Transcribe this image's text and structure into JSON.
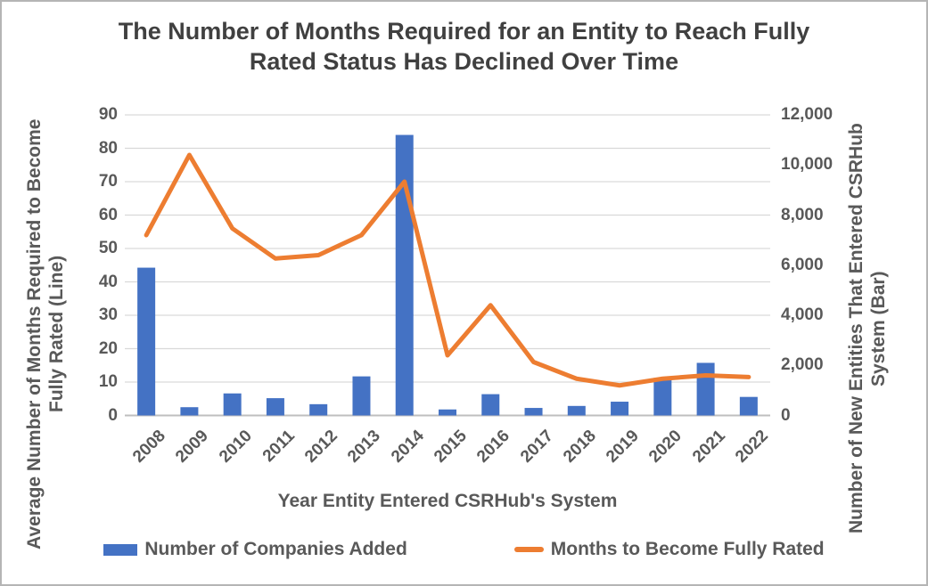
{
  "chart_data": {
    "type": "combo-bar-line",
    "title": "The Number of Months Required for an Entity to Reach Fully Rated Status Has Declined Over Time",
    "categories": [
      "2008",
      "2009",
      "2010",
      "2011",
      "2012",
      "2013",
      "2014",
      "2015",
      "2016",
      "2017",
      "2018",
      "2019",
      "2020",
      "2021",
      "2022"
    ],
    "series": [
      {
        "name": "Number of Companies Added",
        "type": "bar",
        "axis": "right",
        "color": "#4472C4",
        "values": [
          5900,
          330,
          880,
          690,
          450,
          1560,
          11200,
          240,
          850,
          300,
          380,
          550,
          1500,
          2100,
          740
        ]
      },
      {
        "name": "Months to Become Fully Rated",
        "type": "line",
        "axis": "left",
        "color": "#ED7D31",
        "values": [
          54,
          78,
          56,
          47,
          48,
          54,
          70,
          18,
          33,
          16,
          11,
          9,
          11,
          12,
          11.5
        ]
      }
    ],
    "x_axis": {
      "label": "Year Entity Entered CSRHub's System"
    },
    "left_axis": {
      "label": "Average Number of Months Required to Become Fully Rated (Line)",
      "label_lines": [
        "Average Number of Months Required to Become",
        "Fully Rated (Line)"
      ],
      "min": 0,
      "max": 90,
      "step": 10,
      "ticks": [
        "0",
        "10",
        "20",
        "30",
        "40",
        "50",
        "60",
        "70",
        "80",
        "90"
      ]
    },
    "right_axis": {
      "label": "Number of New Entities That Entered CSRHub System (Bar)",
      "label_lines": [
        "Number of New Entities That Entered CSRHub",
        "System (Bar)"
      ],
      "min": 0,
      "max": 12000,
      "step": 2000,
      "ticks": [
        "0",
        "2,000",
        "4,000",
        "6,000",
        "8,000",
        "10,000",
        "12,000"
      ]
    },
    "legend_position": "bottom",
    "grid": true,
    "colors": {
      "bar": "#4472C4",
      "line": "#ED7D31",
      "gridline": "#D9D9D9",
      "axis_line": "#BFBFBF",
      "text": "#595959",
      "title": "#404040"
    }
  }
}
